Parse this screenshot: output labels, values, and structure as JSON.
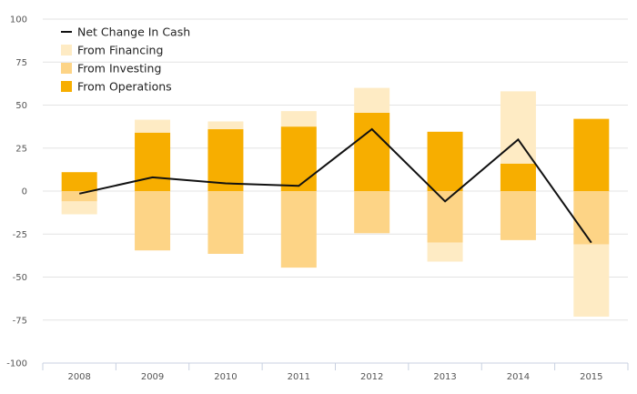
{
  "chart_data": {
    "type": "bar",
    "subtype": "stacked-bar-with-line",
    "categories": [
      "2008",
      "2009",
      "2010",
      "2011",
      "2012",
      "2013",
      "2014",
      "2015"
    ],
    "ylim": [
      -100,
      100
    ],
    "yticks": [
      100,
      75,
      50,
      25,
      0,
      -25,
      -50,
      -75,
      -100
    ],
    "grid": true,
    "legend_position": "top-left",
    "legend": [
      {
        "name": "Net Change In Cash",
        "kind": "line",
        "color": "#111111"
      },
      {
        "name": "From Financing",
        "kind": "box",
        "color": "#FEEBC4"
      },
      {
        "name": "From Investing",
        "kind": "box",
        "color": "#FDD486"
      },
      {
        "name": "From Operations",
        "kind": "box",
        "color": "#F7AE00"
      }
    ],
    "series": [
      {
        "name": "From Operations",
        "color": "#F7AE00",
        "values": [
          11,
          34,
          36,
          37.5,
          45.5,
          34.5,
          16,
          42
        ]
      },
      {
        "name": "From Investing",
        "color": "#FDD486",
        "values": [
          -6,
          -34.5,
          -36.5,
          -44.5,
          -24.5,
          -30,
          -28.5,
          -31
        ]
      },
      {
        "name": "From Financing",
        "color": "#FEEBC4",
        "values": [
          -7.5,
          7.5,
          4.5,
          9,
          14.5,
          -11,
          42,
          -42
        ]
      }
    ],
    "line": {
      "name": "Net Change In Cash",
      "color": "#111111",
      "values": [
        -1.5,
        8,
        4.5,
        3,
        36,
        -6,
        30,
        -30
      ]
    }
  }
}
